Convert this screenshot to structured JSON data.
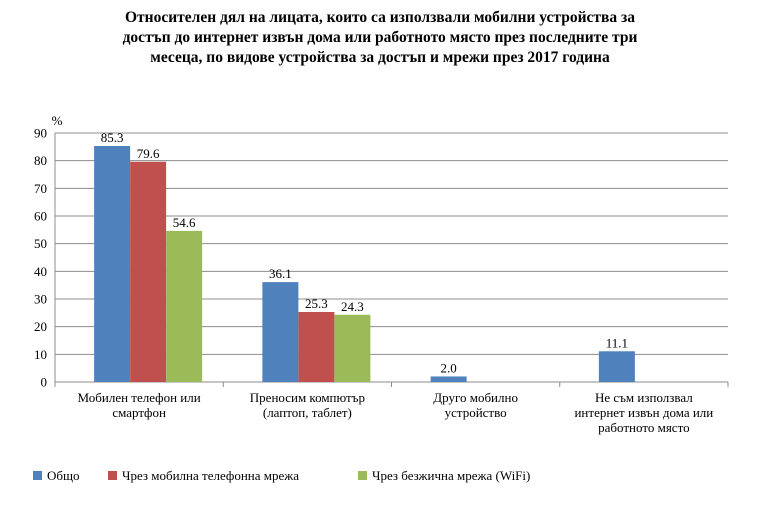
{
  "chart_data": {
    "type": "bar",
    "title": "Относителен дял на лицата, които са използвали мобилни устройства за достъп до интернет извън дома или работното място през последните три месеца, по видове устройства за достъп и мрежи през 2017 година",
    "title_lines": [
      "Относителен дял на лицата, които са използвали мобилни устройства за",
      "достъп до интернет извън дома или работното място през последните три",
      "месеца, по видове устройства за достъп и мрежи през 2017 година"
    ],
    "ylabel": "%",
    "xlabel": "",
    "ylim": [
      0,
      90
    ],
    "yticks": [
      0,
      10,
      20,
      30,
      40,
      50,
      60,
      70,
      80,
      90
    ],
    "grid": true,
    "legend_position": "bottom-left",
    "categories": [
      [
        "Мобилен телефон или",
        "смартфон"
      ],
      [
        "Преносим компютър",
        "(лаптоп, таблет)"
      ],
      [
        "Друго мобилно",
        "устройство"
      ],
      [
        "Не съм използвал",
        "интернет извън дома или",
        "работното място"
      ]
    ],
    "series": [
      {
        "name": "Общо",
        "color": "#4f81bd",
        "values": [
          85.3,
          36.1,
          2.0,
          11.1
        ],
        "labels": [
          "85.3",
          "36.1",
          "2.0",
          "11.1"
        ]
      },
      {
        "name": "Чрез мобилна телефонна мрежа",
        "color": "#c0504d",
        "values": [
          79.6,
          25.3,
          null,
          null
        ],
        "labels": [
          "79.6",
          "25.3",
          "",
          ""
        ]
      },
      {
        "name": "Чрез безжична мрежа (WiFi)",
        "color": "#9bbb59",
        "values": [
          54.6,
          24.3,
          null,
          null
        ],
        "labels": [
          "54.6",
          "24.3",
          "",
          ""
        ]
      }
    ]
  }
}
